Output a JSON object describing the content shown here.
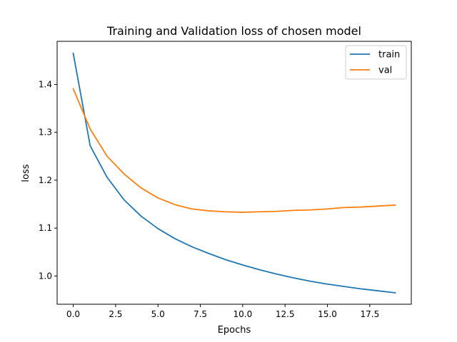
{
  "chart_data": {
    "type": "line",
    "title": "Training and Validation loss of chosen model",
    "xlabel": "Epochs",
    "ylabel": "loss",
    "xlim": [
      -0.95,
      19.95
    ],
    "ylim": [
      0.941,
      1.49
    ],
    "xticks": [
      0,
      2.5,
      5,
      7.5,
      10,
      12.5,
      15,
      17.5
    ],
    "xtick_labels": [
      "0.0",
      "2.5",
      "5.0",
      "7.5",
      "10.0",
      "12.5",
      "15.0",
      "17.5"
    ],
    "yticks": [
      1.0,
      1.1,
      1.2,
      1.3,
      1.4
    ],
    "ytick_labels": [
      "1.0",
      "1.1",
      "1.2",
      "1.3",
      "1.4"
    ],
    "grid": false,
    "legend_position": "top-right",
    "x": [
      0,
      1,
      2,
      3,
      4,
      5,
      6,
      7,
      8,
      9,
      10,
      11,
      12,
      13,
      14,
      15,
      16,
      17,
      18,
      19
    ],
    "series": [
      {
        "name": "train",
        "color": "#1f77b4",
        "values": [
          1.465,
          1.272,
          1.206,
          1.159,
          1.125,
          1.099,
          1.078,
          1.061,
          1.047,
          1.034,
          1.023,
          1.013,
          1.004,
          0.996,
          0.989,
          0.983,
          0.978,
          0.973,
          0.969,
          0.965
        ]
      },
      {
        "name": "val",
        "color": "#ff7f0e",
        "values": [
          1.391,
          1.307,
          1.25,
          1.213,
          1.184,
          1.163,
          1.149,
          1.14,
          1.136,
          1.134,
          1.133,
          1.134,
          1.135,
          1.137,
          1.138,
          1.14,
          1.143,
          1.144,
          1.146,
          1.148
        ]
      }
    ]
  }
}
